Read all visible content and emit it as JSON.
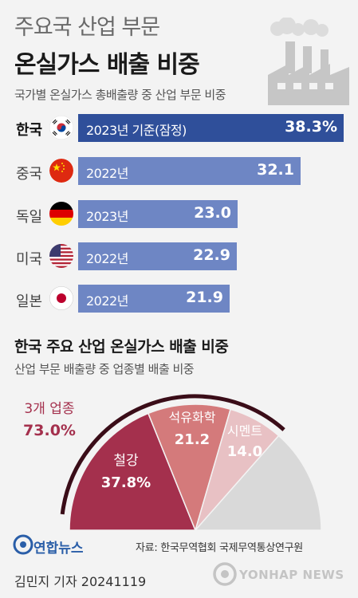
{
  "header": {
    "title_line1": "주요국 산업 부문",
    "title_line2": "온실가스 배출 비중"
  },
  "section1": {
    "subtitle": "국가별 온실가스 총배출량 중 산업 부문 비중"
  },
  "section2": {
    "title": "한국 주요 산업 온실가스 배출 비중",
    "subtitle": "산업 부문 배출량 중 업종별 배출 비중"
  },
  "chart_data": [
    {
      "type": "bar",
      "orientation": "horizontal",
      "categories": [
        "한국",
        "중국",
        "독일",
        "미국",
        "일본"
      ],
      "year_labels": [
        "2023년 기준(잠정)",
        "2022년",
        "2023년",
        "2022년",
        "2022년"
      ],
      "values": [
        38.3,
        32.1,
        23.0,
        22.9,
        21.9
      ],
      "value_labels": [
        "38.3%",
        "32.1",
        "23.0",
        "22.9",
        "21.9"
      ],
      "flags": [
        "korea-flag",
        "china-flag",
        "germany-flag",
        "usa-flag",
        "japan-flag"
      ],
      "colors": [
        "#2f4f9a",
        "#6e86c4",
        "#6e86c4",
        "#6e86c4",
        "#6e86c4"
      ]
    },
    {
      "type": "pie",
      "shape": "semicircle",
      "slices": [
        {
          "label": "철강",
          "value": 37.8,
          "value_label": "37.8%",
          "color": "#a4304d"
        },
        {
          "label": "석유화학",
          "value": 21.2,
          "value_label": "21.2",
          "color": "#d47a7b"
        },
        {
          "label": "시멘트",
          "value": 14.0,
          "value_label": "14.0",
          "color": "#e8c1c4"
        },
        {
          "label": "",
          "value": 27.0,
          "value_label": "",
          "color": "#d9d9d9"
        }
      ],
      "group_label": "3개 업종",
      "group_value_label": "73.0%"
    }
  ],
  "footer": {
    "logo_text": "연합뉴스",
    "source": "자료: 한국무역협회 국제무역통상연구원",
    "reporter": "김민지 기자  20241119",
    "watermark": "YONHAP NEWS"
  }
}
